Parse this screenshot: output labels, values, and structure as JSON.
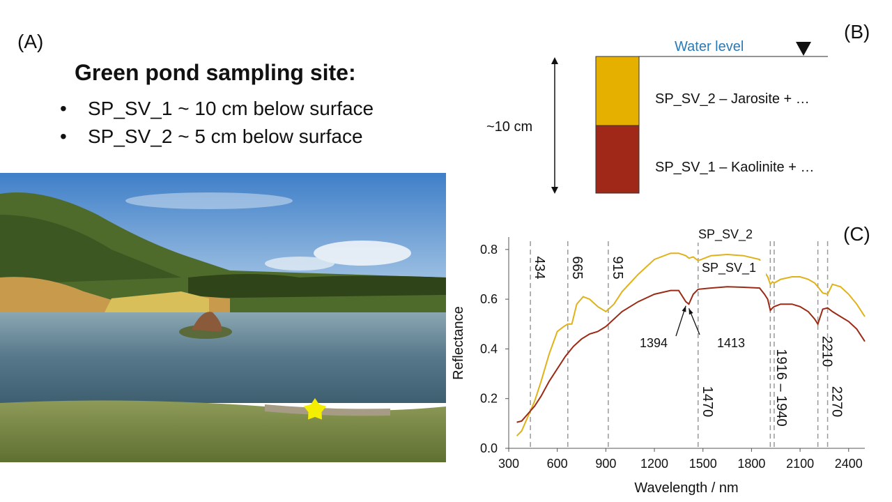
{
  "panel_a": {
    "label": "(A)",
    "title": "Green pond sampling site:",
    "bullets": [
      "SP_SV_1 ~ 10 cm below surface",
      "SP_SV_2 ~ 5 cm below surface"
    ]
  },
  "panel_b": {
    "label": "(B)",
    "water_level": "Water level",
    "depth": "~10 cm",
    "upper_layer": "SP_SV_2 – Jarosite + …",
    "lower_layer": "SP_SV_1 – Kaolinite + …",
    "colors": {
      "upper": "#e6b000",
      "lower": "#a02818",
      "water": "#2a7ab8"
    }
  },
  "panel_c": {
    "label": "(C)"
  },
  "photo": {
    "marker": "star-icon",
    "marker_color": "#f4ee00"
  },
  "chart_data": {
    "type": "line",
    "xlabel": "Wavelength / nm",
    "ylabel": "Reflectance",
    "xlim": [
      300,
      2500
    ],
    "ylim": [
      0,
      0.85
    ],
    "xticks": [
      300,
      600,
      900,
      1200,
      1500,
      1800,
      2100,
      2400
    ],
    "yticks": [
      0.0,
      0.2,
      0.4,
      0.6,
      0.8
    ],
    "series": [
      {
        "name": "SP_SV_2",
        "color": "#e0b21a",
        "x": [
          350,
          380,
          420,
          460,
          500,
          550,
          600,
          640,
          665,
          690,
          720,
          760,
          800,
          850,
          900,
          950,
          1000,
          1100,
          1200,
          1300,
          1350,
          1394,
          1413,
          1440,
          1470,
          1550,
          1650,
          1750,
          1850,
          1880,
          1900,
          1916,
          1930,
          1940,
          1980,
          2050,
          2100,
          2150,
          2190,
          2210,
          2240,
          2270,
          2300,
          2350,
          2400,
          2450,
          2500
        ],
        "y": [
          0.05,
          0.07,
          0.13,
          0.19,
          0.27,
          0.38,
          0.47,
          0.49,
          0.5,
          0.5,
          0.58,
          0.61,
          0.6,
          0.57,
          0.55,
          0.58,
          0.63,
          0.7,
          0.76,
          0.785,
          0.785,
          0.775,
          0.765,
          0.77,
          0.755,
          0.775,
          0.78,
          0.775,
          0.76,
          0.71,
          0.69,
          0.66,
          0.67,
          0.665,
          0.68,
          0.69,
          0.69,
          0.68,
          0.665,
          0.65,
          0.625,
          0.62,
          0.66,
          0.65,
          0.62,
          0.58,
          0.53
        ]
      },
      {
        "name": "SP_SV_1",
        "color": "#9a2a14",
        "x": [
          350,
          380,
          420,
          460,
          500,
          550,
          600,
          650,
          700,
          750,
          800,
          850,
          900,
          950,
          1000,
          1100,
          1200,
          1300,
          1350,
          1394,
          1413,
          1440,
          1470,
          1550,
          1650,
          1750,
          1850,
          1880,
          1900,
          1916,
          1930,
          1940,
          1980,
          2050,
          2100,
          2150,
          2190,
          2210,
          2240,
          2270,
          2300,
          2350,
          2400,
          2450,
          2500
        ],
        "y": [
          0.105,
          0.11,
          0.14,
          0.17,
          0.21,
          0.27,
          0.32,
          0.37,
          0.41,
          0.44,
          0.46,
          0.47,
          0.49,
          0.52,
          0.55,
          0.59,
          0.62,
          0.635,
          0.635,
          0.59,
          0.58,
          0.62,
          0.64,
          0.645,
          0.65,
          0.648,
          0.645,
          0.62,
          0.6,
          0.555,
          0.565,
          0.57,
          0.58,
          0.58,
          0.57,
          0.55,
          0.52,
          0.5,
          0.56,
          0.565,
          0.55,
          0.53,
          0.51,
          0.48,
          0.43
        ]
      }
    ],
    "reference_lines": [
      434,
      665,
      915,
      1470,
      1916,
      1940,
      2210,
      2270
    ],
    "rotated_labels": [
      {
        "x": 434,
        "text": "434",
        "pos": "top"
      },
      {
        "x": 665,
        "text": "665",
        "pos": "top"
      },
      {
        "x": 915,
        "text": "915",
        "pos": "top"
      },
      {
        "x": 1470,
        "text": "1470",
        "pos": "bottom"
      },
      {
        "x": 1928,
        "text": "1916 – 1940",
        "pos": "bottom"
      },
      {
        "x": 2210,
        "text": "2210",
        "pos": "mid"
      },
      {
        "x": 2270,
        "text": "2270",
        "pos": "bottom"
      }
    ],
    "arrow_annotations": [
      {
        "text": "1394",
        "x": 1394,
        "y": 0.59
      },
      {
        "text": "1413",
        "x": 1413,
        "y": 0.58
      }
    ],
    "series_labels": [
      {
        "text": "SP_SV_2",
        "x": 1450,
        "y": 0.82
      },
      {
        "text": "SP_SV_1",
        "x": 1490,
        "y": 0.685
      }
    ]
  }
}
